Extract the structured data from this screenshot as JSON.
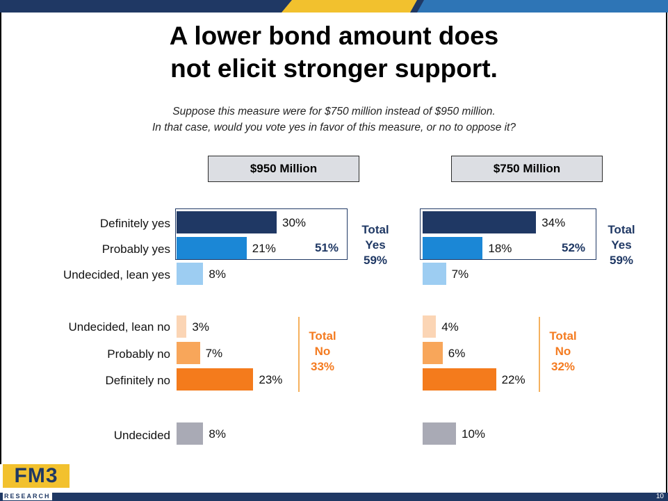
{
  "title_lines": [
    "A lower bond amount does",
    "not elicit stronger support."
  ],
  "question_lines": [
    "Suppose this measure were for $750 million instead of $950 million.",
    "In that case, would you vote yes in favor of this measure, or no to oppose it?"
  ],
  "page_number": "10",
  "logo": {
    "main": "FM3",
    "sub": "RESEARCH"
  },
  "colors": {
    "definitely_yes": "#1f3864",
    "probably_yes": "#1b87d6",
    "lean_yes": "#9dcdf2",
    "lean_no": "#fbd5b5",
    "probably_no": "#f8a65a",
    "definitely_no": "#f47b1c",
    "undecided": "#a9aab5",
    "total_yes_text": "#1f3864",
    "total_no_text": "#f47b20"
  },
  "chart_data": {
    "type": "bar",
    "orientation": "horizontal",
    "categories": [
      "Definitely yes",
      "Probably yes",
      "Undecided, lean yes",
      "Undecided, lean no",
      "Probably no",
      "Definitely no",
      "Undecided"
    ],
    "series": [
      {
        "name": "$950 Million",
        "values": [
          30,
          21,
          8,
          3,
          7,
          23,
          8
        ],
        "labels": [
          "30%",
          "21%",
          "8%",
          "3%",
          "7%",
          "23%",
          "8%"
        ],
        "net_yes_label": "51%",
        "total_yes": {
          "line1": "Total",
          "line2": "Yes",
          "value": "59%"
        },
        "total_no": {
          "line1": "Total",
          "line2": "No",
          "value": "33%"
        }
      },
      {
        "name": "$750 Million",
        "values": [
          34,
          18,
          7,
          4,
          6,
          22,
          10
        ],
        "labels": [
          "34%",
          "18%",
          "7%",
          "4%",
          "6%",
          "22%",
          "10%"
        ],
        "net_yes_label": "52%",
        "total_yes": {
          "line1": "Total",
          "line2": "Yes",
          "value": "59%"
        },
        "total_no": {
          "line1": "Total",
          "line2": "No",
          "value": "32%"
        }
      }
    ],
    "unit": "%",
    "grid": false,
    "legend": "none"
  }
}
